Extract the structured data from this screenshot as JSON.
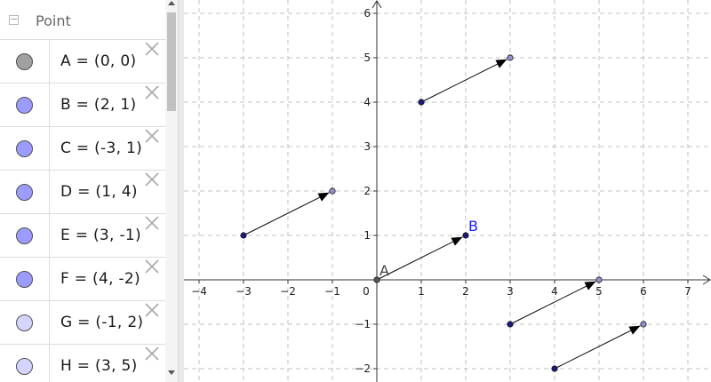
{
  "algebra": {
    "category": "Point",
    "rows": [
      {
        "label": "A = (0, 0)",
        "marble": "#a0a0a0"
      },
      {
        "label": "B = (2, 1)",
        "marble": "#9c9cff"
      },
      {
        "label": "C = (-3, 1)",
        "marble": "#9c9cff"
      },
      {
        "label": "D = (1, 4)",
        "marble": "#9c9cff"
      },
      {
        "label": "E = (3, -1)",
        "marble": "#9c9cff"
      },
      {
        "label": "F = (4, -2)",
        "marble": "#9c9cff"
      },
      {
        "label": "G = (-1, 2)",
        "marble": "#d4d4ff"
      },
      {
        "label": "H = (3, 5)",
        "marble": "#d4d4ff"
      }
    ]
  },
  "graphics": {
    "x_ticks": [
      "−4",
      "−3",
      "−2",
      "−1",
      "0",
      "1",
      "2",
      "3",
      "4",
      "5",
      "6",
      "7"
    ],
    "y_ticks": [
      "−2",
      "−1",
      "1",
      "2",
      "3",
      "4",
      "5",
      "6"
    ],
    "x_range": [
      -4.2,
      7.5
    ],
    "y_range": [
      -2.3,
      6.2
    ],
    "labels": [
      {
        "text": "A",
        "x": 0,
        "y": 0,
        "color": "#444444"
      },
      {
        "text": "B",
        "x": 2,
        "y": 1,
        "color": "#1a1aff"
      }
    ],
    "vectors": [
      {
        "from": [
          0,
          0
        ],
        "to": [
          2,
          1
        ]
      },
      {
        "from": [
          -3,
          1
        ],
        "to": [
          -1,
          2
        ]
      },
      {
        "from": [
          1,
          4
        ],
        "to": [
          3,
          5
        ]
      },
      {
        "from": [
          3,
          -1
        ],
        "to": [
          5,
          0
        ]
      },
      {
        "from": [
          4,
          -2
        ],
        "to": [
          6,
          -1
        ]
      }
    ],
    "points": [
      {
        "name": "A",
        "x": 0,
        "y": 0,
        "fill": "#555555"
      },
      {
        "name": "B",
        "x": 2,
        "y": 1,
        "fill": "#1a1a7a"
      },
      {
        "name": "C",
        "x": -3,
        "y": 1,
        "fill": "#1a1a7a"
      },
      {
        "name": "D",
        "x": 1,
        "y": 4,
        "fill": "#1a1a7a"
      },
      {
        "name": "E",
        "x": 3,
        "y": -1,
        "fill": "#1a1a7a"
      },
      {
        "name": "F",
        "x": 4,
        "y": -2,
        "fill": "#1a1a7a"
      },
      {
        "name": "G",
        "x": -1,
        "y": 2,
        "fill": "#9090cc"
      },
      {
        "name": "H",
        "x": 3,
        "y": 5,
        "fill": "#9090cc"
      },
      {
        "name": "",
        "x": 5,
        "y": 0,
        "fill": "#9090cc"
      },
      {
        "name": "",
        "x": 6,
        "y": -1,
        "fill": "#9090cc"
      }
    ]
  }
}
